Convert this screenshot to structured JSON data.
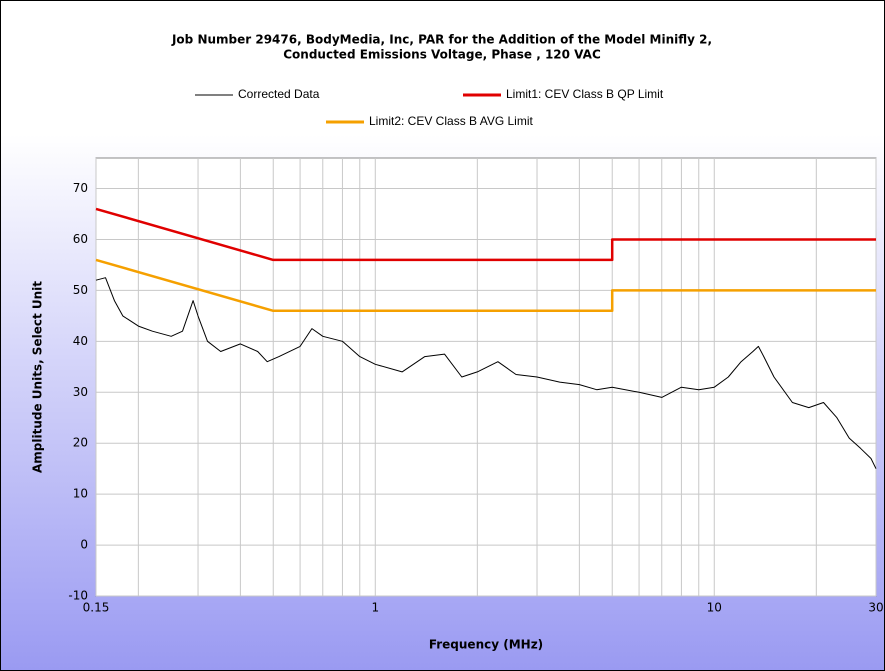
{
  "chart_data": {
    "type": "line",
    "title": [
      "Job Number 29476, BodyMedia, Inc, PAR for the Addition of the Model Minifly 2,",
      "Conducted Emissions Voltage, Phase , 120 VAC"
    ],
    "xlabel": "Frequency (MHz)",
    "ylabel": "Amplitude Units, Select Unit",
    "xscale": "log",
    "xlim": [
      0.15,
      30
    ],
    "ylim": [
      -10,
      76
    ],
    "xticks": [
      0.15,
      1,
      10,
      30
    ],
    "xgrid_minor": [
      0.2,
      0.3,
      0.4,
      0.5,
      0.6,
      0.7,
      0.8,
      0.9,
      2,
      3,
      4,
      5,
      6,
      7,
      8,
      9,
      20
    ],
    "yticks": [
      -10,
      0,
      10,
      20,
      30,
      40,
      50,
      60,
      70
    ],
    "grid": true,
    "legend": "top",
    "series": [
      {
        "name": "Corrected Data",
        "color": "#000000",
        "x": [
          0.15,
          0.16,
          0.17,
          0.18,
          0.2,
          0.22,
          0.25,
          0.27,
          0.29,
          0.3,
          0.32,
          0.35,
          0.4,
          0.45,
          0.48,
          0.52,
          0.6,
          0.65,
          0.7,
          0.8,
          0.9,
          1.0,
          1.2,
          1.4,
          1.6,
          1.8,
          2.0,
          2.3,
          2.6,
          3.0,
          3.5,
          4.0,
          4.5,
          5,
          6,
          7,
          8,
          9,
          10,
          11,
          12,
          13,
          13.5,
          14,
          15,
          17,
          19,
          21,
          23,
          25,
          27,
          29,
          30
        ],
        "values": [
          52,
          52.5,
          48,
          45,
          43,
          42,
          41,
          42,
          48,
          45,
          40,
          38,
          39.5,
          38,
          36,
          37,
          39,
          42.5,
          41,
          40,
          37,
          35.5,
          34,
          37,
          37.5,
          33,
          34,
          36,
          33.5,
          33,
          32,
          31.5,
          30.5,
          31,
          30,
          29,
          31,
          30.5,
          31,
          33,
          36,
          38,
          39,
          37,
          33,
          28,
          27,
          28,
          25,
          21,
          19,
          17,
          15
        ]
      },
      {
        "name": "Limit1: CEV Class B QP Limit",
        "color": "#e00000",
        "x": [
          0.15,
          0.5,
          5,
          5,
          30
        ],
        "values": [
          66,
          56,
          56,
          60,
          60
        ]
      },
      {
        "name": "Limit2: CEV Class B AVG Limit",
        "color": "#f5a000",
        "x": [
          0.15,
          0.5,
          5,
          5,
          30
        ],
        "values": [
          56,
          46,
          46,
          50,
          50
        ]
      }
    ]
  }
}
